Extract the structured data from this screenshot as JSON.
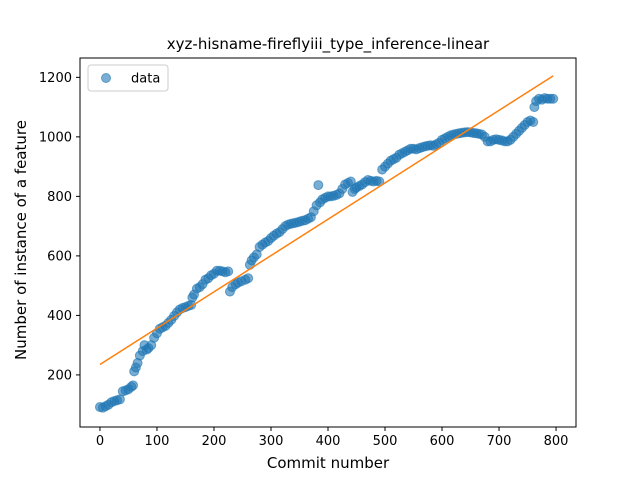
{
  "chart_data": {
    "type": "scatter",
    "title": "xyz-hisname-fireflyiii_type_inference-linear",
    "xlabel": "Commit number",
    "ylabel": "Number of instance of a feature",
    "xlim": [
      -35,
      835
    ],
    "ylim": [
      25,
      1265
    ],
    "xticks": [
      0,
      100,
      200,
      300,
      400,
      500,
      600,
      700,
      800
    ],
    "yticks": [
      200,
      400,
      600,
      800,
      1000,
      1200
    ],
    "grid": false,
    "legend": {
      "position": "top-left",
      "entries": [
        "data"
      ]
    },
    "colors": {
      "points": "#1f77b4",
      "fit": "#ff7f0e"
    },
    "series": [
      {
        "name": "data",
        "type": "scatter",
        "points": [
          [
            0,
            92
          ],
          [
            5,
            90
          ],
          [
            10,
            95
          ],
          [
            15,
            100
          ],
          [
            20,
            108
          ],
          [
            25,
            112
          ],
          [
            30,
            115
          ],
          [
            35,
            118
          ],
          [
            40,
            145
          ],
          [
            45,
            148
          ],
          [
            50,
            152
          ],
          [
            55,
            160
          ],
          [
            58,
            165
          ],
          [
            60,
            212
          ],
          [
            63,
            225
          ],
          [
            66,
            240
          ],
          [
            70,
            265
          ],
          [
            75,
            280
          ],
          [
            78,
            300
          ],
          [
            82,
            285
          ],
          [
            85,
            290
          ],
          [
            90,
            300
          ],
          [
            95,
            325
          ],
          [
            100,
            340
          ],
          [
            105,
            355
          ],
          [
            110,
            360
          ],
          [
            115,
            365
          ],
          [
            120,
            375
          ],
          [
            125,
            385
          ],
          [
            130,
            398
          ],
          [
            135,
            410
          ],
          [
            140,
            420
          ],
          [
            145,
            425
          ],
          [
            150,
            428
          ],
          [
            155,
            432
          ],
          [
            160,
            435
          ],
          [
            162,
            460
          ],
          [
            165,
            470
          ],
          [
            170,
            490
          ],
          [
            175,
            495
          ],
          [
            180,
            505
          ],
          [
            185,
            520
          ],
          [
            190,
            525
          ],
          [
            195,
            535
          ],
          [
            200,
            540
          ],
          [
            205,
            550
          ],
          [
            210,
            550
          ],
          [
            215,
            548
          ],
          [
            220,
            545
          ],
          [
            225,
            548
          ],
          [
            228,
            480
          ],
          [
            232,
            495
          ],
          [
            238,
            505
          ],
          [
            242,
            510
          ],
          [
            248,
            515
          ],
          [
            255,
            520
          ],
          [
            260,
            525
          ],
          [
            263,
            570
          ],
          [
            266,
            585
          ],
          [
            270,
            595
          ],
          [
            275,
            605
          ],
          [
            280,
            630
          ],
          [
            285,
            638
          ],
          [
            290,
            645
          ],
          [
            295,
            650
          ],
          [
            300,
            660
          ],
          [
            305,
            668
          ],
          [
            310,
            675
          ],
          [
            315,
            680
          ],
          [
            320,
            690
          ],
          [
            325,
            700
          ],
          [
            330,
            705
          ],
          [
            335,
            708
          ],
          [
            340,
            710
          ],
          [
            345,
            712
          ],
          [
            350,
            715
          ],
          [
            355,
            718
          ],
          [
            360,
            720
          ],
          [
            365,
            725
          ],
          [
            370,
            730
          ],
          [
            375,
            750
          ],
          [
            380,
            770
          ],
          [
            383,
            838
          ],
          [
            386,
            780
          ],
          [
            390,
            790
          ],
          [
            395,
            795
          ],
          [
            400,
            800
          ],
          [
            405,
            800
          ],
          [
            410,
            802
          ],
          [
            415,
            805
          ],
          [
            420,
            810
          ],
          [
            425,
            825
          ],
          [
            430,
            840
          ],
          [
            435,
            845
          ],
          [
            440,
            850
          ],
          [
            443,
            815
          ],
          [
            447,
            825
          ],
          [
            450,
            830
          ],
          [
            455,
            835
          ],
          [
            460,
            840
          ],
          [
            465,
            848
          ],
          [
            470,
            855
          ],
          [
            475,
            852
          ],
          [
            480,
            850
          ],
          [
            485,
            852
          ],
          [
            490,
            850
          ],
          [
            495,
            890
          ],
          [
            500,
            900
          ],
          [
            505,
            910
          ],
          [
            510,
            920
          ],
          [
            515,
            925
          ],
          [
            520,
            930
          ],
          [
            525,
            940
          ],
          [
            530,
            945
          ],
          [
            535,
            950
          ],
          [
            540,
            955
          ],
          [
            545,
            960
          ],
          [
            550,
            960
          ],
          [
            555,
            958
          ],
          [
            560,
            962
          ],
          [
            565,
            965
          ],
          [
            570,
            968
          ],
          [
            575,
            970
          ],
          [
            580,
            972
          ],
          [
            585,
            970
          ],
          [
            590,
            975
          ],
          [
            595,
            980
          ],
          [
            600,
            990
          ],
          [
            605,
            995
          ],
          [
            610,
            1000
          ],
          [
            615,
            1005
          ],
          [
            620,
            1008
          ],
          [
            625,
            1010
          ],
          [
            630,
            1012
          ],
          [
            635,
            1014
          ],
          [
            640,
            1015
          ],
          [
            645,
            1016
          ],
          [
            650,
            1015
          ],
          [
            655,
            1013
          ],
          [
            660,
            1012
          ],
          [
            665,
            1010
          ],
          [
            670,
            1008
          ],
          [
            675,
            1000
          ],
          [
            680,
            985
          ],
          [
            685,
            985
          ],
          [
            690,
            990
          ],
          [
            695,
            992
          ],
          [
            700,
            990
          ],
          [
            705,
            988
          ],
          [
            710,
            985
          ],
          [
            715,
            985
          ],
          [
            720,
            990
          ],
          [
            725,
            1000
          ],
          [
            730,
            1010
          ],
          [
            735,
            1020
          ],
          [
            740,
            1030
          ],
          [
            745,
            1040
          ],
          [
            750,
            1050
          ],
          [
            755,
            1055
          ],
          [
            760,
            1050
          ],
          [
            762,
            1100
          ],
          [
            765,
            1120
          ],
          [
            770,
            1128
          ],
          [
            775,
            1125
          ],
          [
            780,
            1130
          ],
          [
            785,
            1128
          ],
          [
            790,
            1128
          ],
          [
            795,
            1128
          ]
        ]
      },
      {
        "name": "",
        "type": "line",
        "points": [
          [
            0,
            235
          ],
          [
            795,
            1205
          ]
        ]
      }
    ]
  }
}
